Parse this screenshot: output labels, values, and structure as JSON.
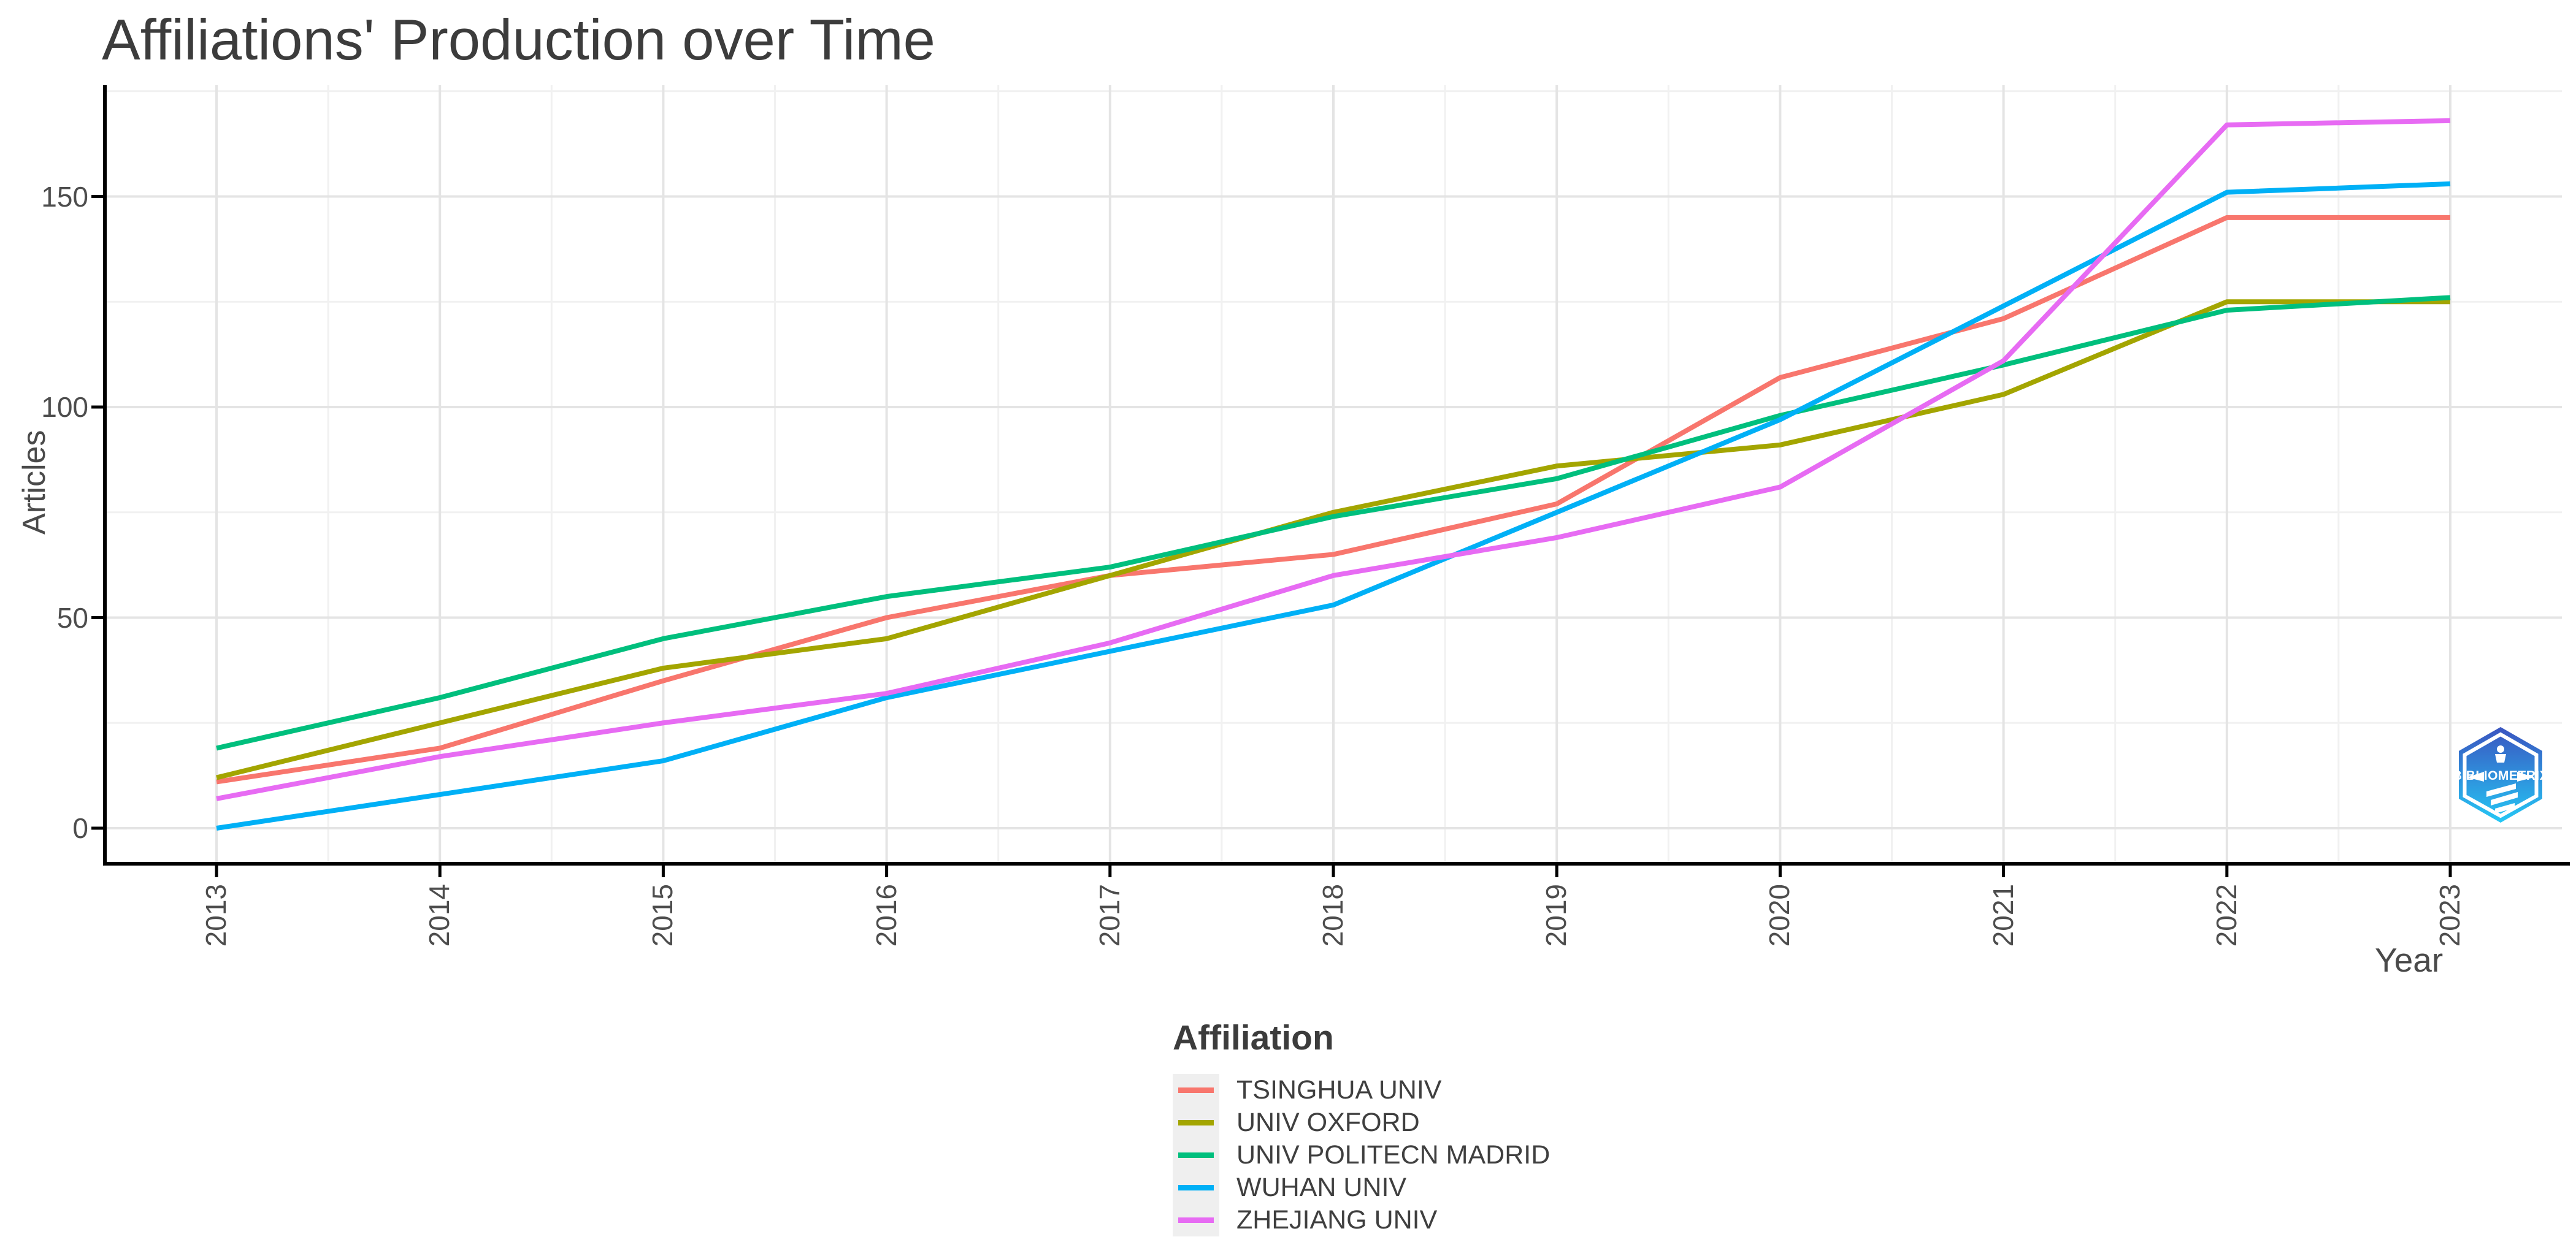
{
  "title": "Affiliations' Production over Time",
  "logo": {
    "text": "BIBLIOMETRIX"
  },
  "chart_data": {
    "type": "line",
    "title": "Affiliations' Production over Time",
    "xlabel": "Year",
    "ylabel": "Articles",
    "legend_title": "Affiliation",
    "legend_position": "bottom",
    "grid": true,
    "x": [
      2013,
      2014,
      2015,
      2016,
      2017,
      2018,
      2019,
      2020,
      2021,
      2022,
      2023
    ],
    "yticks": [
      0,
      50,
      100,
      150
    ],
    "ylim": [
      0,
      176
    ],
    "series": [
      {
        "name": "TSINGHUA UNIV",
        "color": "#F8766D",
        "values": [
          11,
          19,
          35,
          50,
          60,
          65,
          77,
          107,
          121,
          145,
          145
        ]
      },
      {
        "name": "UNIV OXFORD",
        "color": "#A3A500",
        "values": [
          12,
          25,
          38,
          45,
          60,
          75,
          86,
          91,
          103,
          125,
          125
        ]
      },
      {
        "name": "UNIV POLITECN MADRID",
        "color": "#00BF7D",
        "values": [
          19,
          31,
          45,
          55,
          62,
          74,
          83,
          98,
          110,
          123,
          126
        ]
      },
      {
        "name": "WUHAN UNIV",
        "color": "#00B0F6",
        "values": [
          0,
          8,
          16,
          31,
          42,
          53,
          75,
          97,
          124,
          151,
          153
        ]
      },
      {
        "name": "ZHEJIANG UNIV",
        "color": "#E76BF3",
        "values": [
          7,
          17,
          25,
          32,
          44,
          60,
          69,
          81,
          111,
          167,
          168
        ]
      }
    ]
  }
}
